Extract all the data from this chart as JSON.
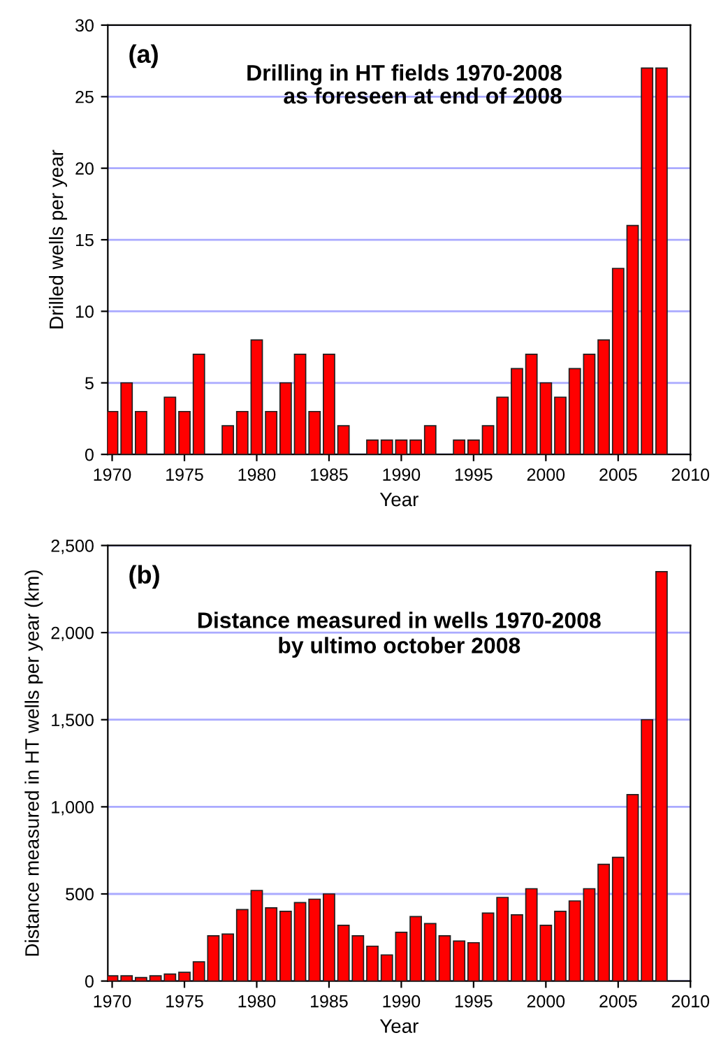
{
  "chart_data": [
    {
      "type": "bar",
      "title": "Drilling in HT fields 1970-2008",
      "subtitle": "as foreseen at end of 2008",
      "xlabel": "Year",
      "ylabel": "Drilled wells per year",
      "annotations": [
        "(a)"
      ],
      "x": [
        1970,
        1971,
        1972,
        1973,
        1974,
        1975,
        1976,
        1977,
        1978,
        1979,
        1980,
        1981,
        1982,
        1983,
        1984,
        1985,
        1986,
        1987,
        1988,
        1989,
        1990,
        1991,
        1992,
        1993,
        1994,
        1995,
        1996,
        1997,
        1998,
        1999,
        2000,
        2001,
        2002,
        2003,
        2004,
        2005,
        2006,
        2007,
        2008
      ],
      "values": [
        3,
        5,
        3,
        null,
        4,
        3,
        7,
        null,
        2,
        3,
        8,
        3,
        5,
        7,
        3,
        7,
        2,
        null,
        1,
        1,
        1,
        1,
        2,
        null,
        1,
        1,
        2,
        4,
        6,
        7,
        5,
        4,
        6,
        7,
        8,
        13,
        16,
        27,
        27
      ],
      "color": "#ff0000",
      "xlim": [
        1969.7,
        2010
      ],
      "xticks": [
        1970,
        1975,
        1980,
        1985,
        1990,
        1995,
        2000,
        2005,
        2010
      ],
      "ylim": [
        0,
        30
      ],
      "yticks": [
        0,
        5,
        10,
        15,
        20,
        25,
        30
      ],
      "grid": "y"
    },
    {
      "type": "bar",
      "title": "Distance measured in wells 1970-2008",
      "subtitle": "by ultimo october 2008",
      "xlabel": "Year",
      "ylabel": "Distance measured in HT wells per year (km)",
      "annotations": [
        "(b)"
      ],
      "x": [
        1970,
        1971,
        1972,
        1973,
        1974,
        1975,
        1976,
        1977,
        1978,
        1979,
        1980,
        1981,
        1982,
        1983,
        1984,
        1985,
        1986,
        1987,
        1988,
        1989,
        1990,
        1991,
        1992,
        1993,
        1994,
        1995,
        1996,
        1997,
        1998,
        1999,
        2000,
        2001,
        2002,
        2003,
        2004,
        2005,
        2006,
        2007,
        2008
      ],
      "values": [
        30,
        30,
        20,
        30,
        40,
        50,
        110,
        260,
        270,
        410,
        520,
        420,
        400,
        450,
        470,
        500,
        320,
        260,
        200,
        150,
        280,
        370,
        330,
        260,
        230,
        220,
        390,
        480,
        380,
        530,
        320,
        400,
        460,
        530,
        670,
        710,
        1070,
        1500,
        2350
      ],
      "color": "#ff0000",
      "xlim": [
        1969.7,
        2010
      ],
      "xticks": [
        1970,
        1975,
        1980,
        1985,
        1990,
        1995,
        2000,
        2005,
        2010
      ],
      "ylim": [
        0,
        2500
      ],
      "yticks": [
        0,
        500,
        {
          "value": 1000,
          "label": "1,000"
        },
        {
          "value": 1500,
          "label": "1,500"
        },
        {
          "value": 2000,
          "label": "2,000"
        },
        {
          "value": 2500,
          "label": "2,500"
        }
      ],
      "grid": "y"
    }
  ]
}
